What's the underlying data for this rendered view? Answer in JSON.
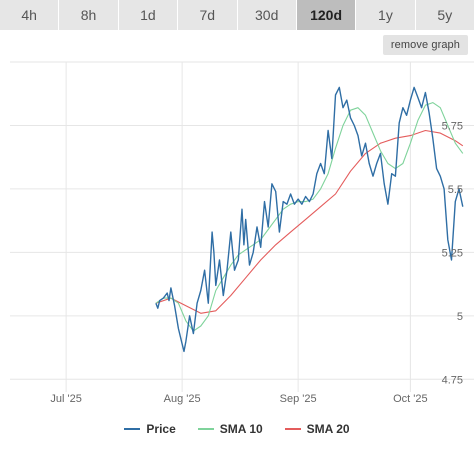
{
  "tabs": [
    {
      "label": "4h"
    },
    {
      "label": "8h"
    },
    {
      "label": "1d"
    },
    {
      "label": "7d"
    },
    {
      "label": "30d"
    },
    {
      "label": "120d",
      "active": true
    },
    {
      "label": "1y"
    },
    {
      "label": "5y"
    }
  ],
  "remove_graph_label": "remove graph",
  "chart_data": {
    "type": "line",
    "xaxis": {
      "ticks": [
        "Jul '25",
        "Aug '25",
        "Sep '25",
        "Oct '25"
      ],
      "tick_days": [
        0,
        31,
        62,
        92
      ],
      "range_days": [
        -15,
        109
      ]
    },
    "yaxis": {
      "ticks": [
        "4.75",
        "5",
        "5.25",
        "5.5",
        "5.75"
      ],
      "tick_values": [
        4.75,
        5,
        5.25,
        5.5,
        5.75
      ],
      "range": [
        4.7,
        6.0
      ],
      "position": "right"
    },
    "grid": true,
    "legend_position": "bottom-center",
    "series": [
      {
        "name": "Price",
        "color": "#2f6ea5",
        "points": [
          [
            24,
            5.05
          ],
          [
            24.5,
            5.03
          ],
          [
            25,
            5.06
          ],
          [
            26,
            5.07
          ],
          [
            27,
            5.09
          ],
          [
            27.5,
            5.06
          ],
          [
            28,
            5.11
          ],
          [
            29,
            5.04
          ],
          [
            30,
            4.95
          ],
          [
            31,
            4.89
          ],
          [
            31.5,
            4.86
          ],
          [
            32,
            4.9
          ],
          [
            33,
            5.0
          ],
          [
            34,
            4.93
          ],
          [
            35,
            5.05
          ],
          [
            36,
            5.1
          ],
          [
            37,
            5.18
          ],
          [
            38,
            5.05
          ],
          [
            39,
            5.33
          ],
          [
            39.5,
            5.25
          ],
          [
            40,
            5.12
          ],
          [
            41,
            5.22
          ],
          [
            42,
            5.08
          ],
          [
            43,
            5.18
          ],
          [
            44,
            5.33
          ],
          [
            45,
            5.18
          ],
          [
            46,
            5.22
          ],
          [
            47,
            5.42
          ],
          [
            47.5,
            5.28
          ],
          [
            48,
            5.38
          ],
          [
            49,
            5.2
          ],
          [
            50,
            5.25
          ],
          [
            51,
            5.35
          ],
          [
            52,
            5.27
          ],
          [
            53,
            5.45
          ],
          [
            54,
            5.35
          ],
          [
            55,
            5.52
          ],
          [
            56,
            5.49
          ],
          [
            57,
            5.33
          ],
          [
            58,
            5.45
          ],
          [
            59,
            5.44
          ],
          [
            60,
            5.48
          ],
          [
            61,
            5.44
          ],
          [
            62,
            5.46
          ],
          [
            63,
            5.44
          ],
          [
            64,
            5.47
          ],
          [
            65,
            5.45
          ],
          [
            66,
            5.48
          ],
          [
            67,
            5.56
          ],
          [
            68,
            5.6
          ],
          [
            69,
            5.56
          ],
          [
            70,
            5.73
          ],
          [
            71,
            5.62
          ],
          [
            72,
            5.87
          ],
          [
            73,
            5.9
          ],
          [
            74,
            5.82
          ],
          [
            75,
            5.85
          ],
          [
            76,
            5.78
          ],
          [
            77,
            5.75
          ],
          [
            78,
            5.71
          ],
          [
            79,
            5.63
          ],
          [
            80,
            5.68
          ],
          [
            81,
            5.6
          ],
          [
            82,
            5.55
          ],
          [
            83,
            5.6
          ],
          [
            84,
            5.64
          ],
          [
            85,
            5.52
          ],
          [
            86,
            5.44
          ],
          [
            87,
            5.56
          ],
          [
            88,
            5.55
          ],
          [
            89,
            5.76
          ],
          [
            90,
            5.82
          ],
          [
            91,
            5.79
          ],
          [
            92,
            5.85
          ],
          [
            93,
            5.9
          ],
          [
            94,
            5.86
          ],
          [
            95,
            5.82
          ],
          [
            96,
            5.88
          ],
          [
            97,
            5.8
          ],
          [
            98,
            5.7
          ],
          [
            99,
            5.58
          ],
          [
            100,
            5.55
          ],
          [
            101,
            5.5
          ],
          [
            102,
            5.3
          ],
          [
            103,
            5.22
          ],
          [
            104,
            5.45
          ],
          [
            105,
            5.5
          ],
          [
            106,
            5.43
          ]
        ]
      },
      {
        "name": "SMA 10",
        "color": "#7fd39b",
        "points": [
          [
            24,
            5.05
          ],
          [
            26,
            5.07
          ],
          [
            28,
            5.07
          ],
          [
            30,
            5.05
          ],
          [
            32,
            4.98
          ],
          [
            34,
            4.94
          ],
          [
            36,
            4.96
          ],
          [
            38,
            5.0
          ],
          [
            40,
            5.1
          ],
          [
            42,
            5.15
          ],
          [
            44,
            5.2
          ],
          [
            46,
            5.24
          ],
          [
            48,
            5.26
          ],
          [
            50,
            5.28
          ],
          [
            52,
            5.3
          ],
          [
            54,
            5.34
          ],
          [
            56,
            5.38
          ],
          [
            58,
            5.42
          ],
          [
            60,
            5.44
          ],
          [
            62,
            5.45
          ],
          [
            64,
            5.45
          ],
          [
            66,
            5.46
          ],
          [
            68,
            5.5
          ],
          [
            70,
            5.56
          ],
          [
            72,
            5.66
          ],
          [
            74,
            5.75
          ],
          [
            76,
            5.81
          ],
          [
            78,
            5.82
          ],
          [
            80,
            5.79
          ],
          [
            82,
            5.72
          ],
          [
            84,
            5.65
          ],
          [
            86,
            5.6
          ],
          [
            88,
            5.58
          ],
          [
            90,
            5.6
          ],
          [
            92,
            5.68
          ],
          [
            94,
            5.77
          ],
          [
            96,
            5.83
          ],
          [
            98,
            5.84
          ],
          [
            100,
            5.82
          ],
          [
            102,
            5.75
          ],
          [
            104,
            5.68
          ],
          [
            106,
            5.64
          ]
        ]
      },
      {
        "name": "SMA 20",
        "color": "#e45c5c",
        "points": [
          [
            24,
            5.05
          ],
          [
            28,
            5.07
          ],
          [
            32,
            5.04
          ],
          [
            36,
            5.01
          ],
          [
            40,
            5.02
          ],
          [
            44,
            5.08
          ],
          [
            48,
            5.15
          ],
          [
            52,
            5.22
          ],
          [
            56,
            5.28
          ],
          [
            60,
            5.33
          ],
          [
            64,
            5.38
          ],
          [
            68,
            5.43
          ],
          [
            72,
            5.48
          ],
          [
            76,
            5.57
          ],
          [
            80,
            5.64
          ],
          [
            84,
            5.68
          ],
          [
            88,
            5.7
          ],
          [
            92,
            5.71
          ],
          [
            96,
            5.73
          ],
          [
            100,
            5.72
          ],
          [
            104,
            5.69
          ],
          [
            106,
            5.67
          ]
        ]
      }
    ]
  }
}
